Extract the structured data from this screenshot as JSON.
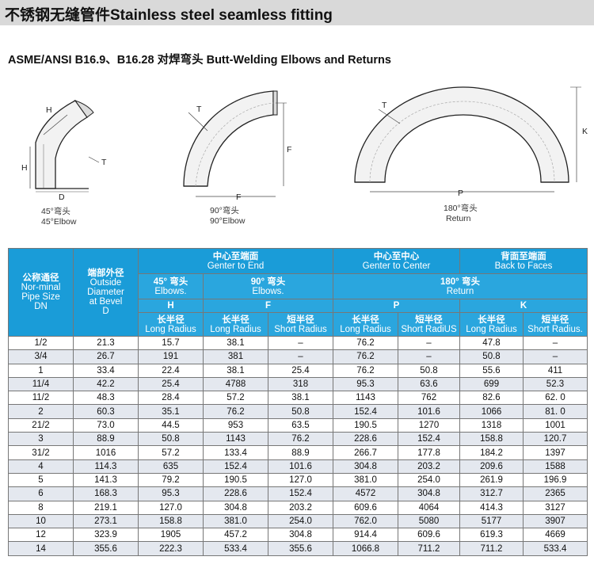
{
  "header": {
    "title": "不锈钢无缝管件Stainless steel seamless fitting",
    "subtitle": "ASME/ANSI B16.9、B16.28 对焊弯头 Butt-Welding Elbows and Returns"
  },
  "diagram": {
    "elbow45": {
      "caption_cn": "45°弯头",
      "caption_en": "45°Elbow",
      "dim_h_side": "H",
      "dim_h_top": "H",
      "dim_t": "T",
      "dim_d": "D"
    },
    "elbow90": {
      "caption_cn": "90°弯头",
      "caption_en": "90°Elbow",
      "dim_t": "T",
      "dim_f_side": "F",
      "dim_f_bottom": "F"
    },
    "return180": {
      "caption_cn": "180°弯头",
      "caption_en": "Return",
      "dim_t": "T",
      "dim_k": "K",
      "dim_p": "P"
    }
  },
  "table": {
    "head": {
      "nominal_cn": "公称通径",
      "nominal_en1": "Nor-minal",
      "nominal_en2": "Pipe Size",
      "nominal_en3": "DN",
      "od_cn": "端部外径",
      "od_en1": "Outside",
      "od_en2": "Diameter",
      "od_en3": "at Bevel",
      "od_en4": "D",
      "cte_cn": "中心至端面",
      "cte_en": "Genter to End",
      "ctc_cn": "中心至中心",
      "ctc_en": "Genter to Center",
      "btf_cn": "背面至端面",
      "btf_en": "Back to Faces",
      "e45_cn": "45° 弯头",
      "e45_en": "Elbows.",
      "e90_cn": "90° 弯头",
      "e90_en": "Elbows.",
      "r180_cn": "180° 弯头",
      "r180_en": "Return",
      "h": "H",
      "f": "F",
      "p": "P",
      "k": "K",
      "lr_cn": "长半径",
      "lr_en": "Long Radius",
      "sr_cn": "短半径",
      "sr_en": "Short Radius",
      "sr_en_p": "Short RadiUS",
      "sr_en_k": "Short Radius."
    },
    "rows": [
      [
        "1/2",
        "21.3",
        "15.7",
        "38.1",
        "–",
        "76.2",
        "–",
        "47.8",
        "–"
      ],
      [
        "3/4",
        "26.7",
        "191",
        "381",
        "–",
        "76.2",
        "–",
        "50.8",
        "–"
      ],
      [
        "1",
        "33.4",
        "22.4",
        "38.1",
        "25.4",
        "76.2",
        "50.8",
        "55.6",
        "411"
      ],
      [
        "11/4",
        "42.2",
        "25.4",
        "4788",
        "318",
        "95.3",
        "63.6",
        "699",
        "52.3"
      ],
      [
        "11/2",
        "48.3",
        "28.4",
        "57.2",
        "38.1",
        "1143",
        "762",
        "82.6",
        "62. 0"
      ],
      [
        "2",
        "60.3",
        "35.1",
        "76.2",
        "50.8",
        "152.4",
        "101.6",
        "1066",
        "81. 0"
      ],
      [
        "21/2",
        "73.0",
        "44.5",
        "953",
        "63.5",
        "190.5",
        "1270",
        "1318",
        "1001"
      ],
      [
        "3",
        "88.9",
        "50.8",
        "1143",
        "76.2",
        "228.6",
        "152.4",
        "158.8",
        "120.7"
      ],
      [
        "31/2",
        "1016",
        "57.2",
        "133.4",
        "88.9",
        "266.7",
        "177.8",
        "184.2",
        "1397"
      ],
      [
        "4",
        "114.3",
        "635",
        "152.4",
        "101.6",
        "304.8",
        "203.2",
        "209.6",
        "1588"
      ],
      [
        "5",
        "141.3",
        "79.2",
        "190.5",
        "127.0",
        "381.0",
        "254.0",
        "261.9",
        "196.9"
      ],
      [
        "6",
        "168.3",
        "95.3",
        "228.6",
        "152.4",
        "4572",
        "304.8",
        "312.7",
        "2365"
      ],
      [
        "8",
        "219.1",
        "127.0",
        "304.8",
        "203.2",
        "609.6",
        "4064",
        "414.3",
        "3127"
      ],
      [
        "10",
        "273.1",
        "158.8",
        "381.0",
        "254.0",
        "762.0",
        "5080",
        "5177",
        "3907"
      ],
      [
        "12",
        "323.9",
        "1905",
        "457.2",
        "304.8",
        "914.4",
        "609.6",
        "619.3",
        "4669"
      ],
      [
        "14",
        "355.6",
        "222.3",
        "533.4",
        "355.6",
        "1066.8",
        "711.2",
        "711.2",
        "533.4"
      ]
    ]
  },
  "colors": {
    "header_blue": "#1a9cd8",
    "row_alt": "#e4e8ef",
    "title_bar": "#d9d9d9"
  }
}
